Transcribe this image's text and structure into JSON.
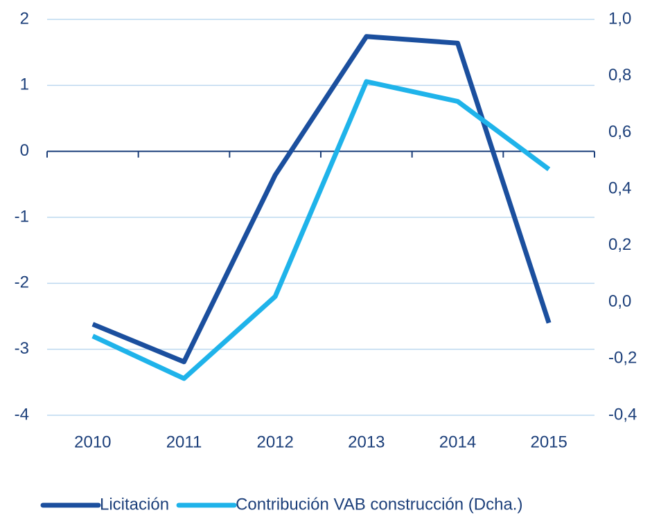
{
  "chart_data": {
    "type": "line",
    "categories": [
      "2010",
      "2011",
      "2012",
      "2013",
      "2014",
      "2015"
    ],
    "series": [
      {
        "name": "Licitación",
        "color": "#1b4f9e",
        "values": [
          -2.62,
          -3.19,
          -0.36,
          1.74,
          1.64,
          -2.6
        ]
      },
      {
        "name": "Contribución VAB construcción (Dcha.)",
        "color": "#1fb3ea",
        "axis": "y2",
        "values": [
          -0.12,
          -0.27,
          0.02,
          0.78,
          0.71,
          0.47
        ]
      }
    ],
    "ylim": [
      -4,
      2
    ],
    "yticks": [
      -4,
      -3,
      -2,
      -1,
      0,
      1,
      2
    ],
    "y2lim": [
      -0.4,
      1.0
    ],
    "y2ticks": [
      {
        "value": -0.4,
        "label": "-0,4"
      },
      {
        "value": -0.2,
        "label": "-0,2"
      },
      {
        "value": 0.0,
        "label": "0,0"
      },
      {
        "value": 0.2,
        "label": "0,2"
      },
      {
        "value": 0.4,
        "label": "0,4"
      },
      {
        "value": 0.6,
        "label": "0,6"
      },
      {
        "value": 0.8,
        "label": "0,8"
      },
      {
        "value": 1.0,
        "label": "1,0"
      }
    ],
    "grid": true
  }
}
